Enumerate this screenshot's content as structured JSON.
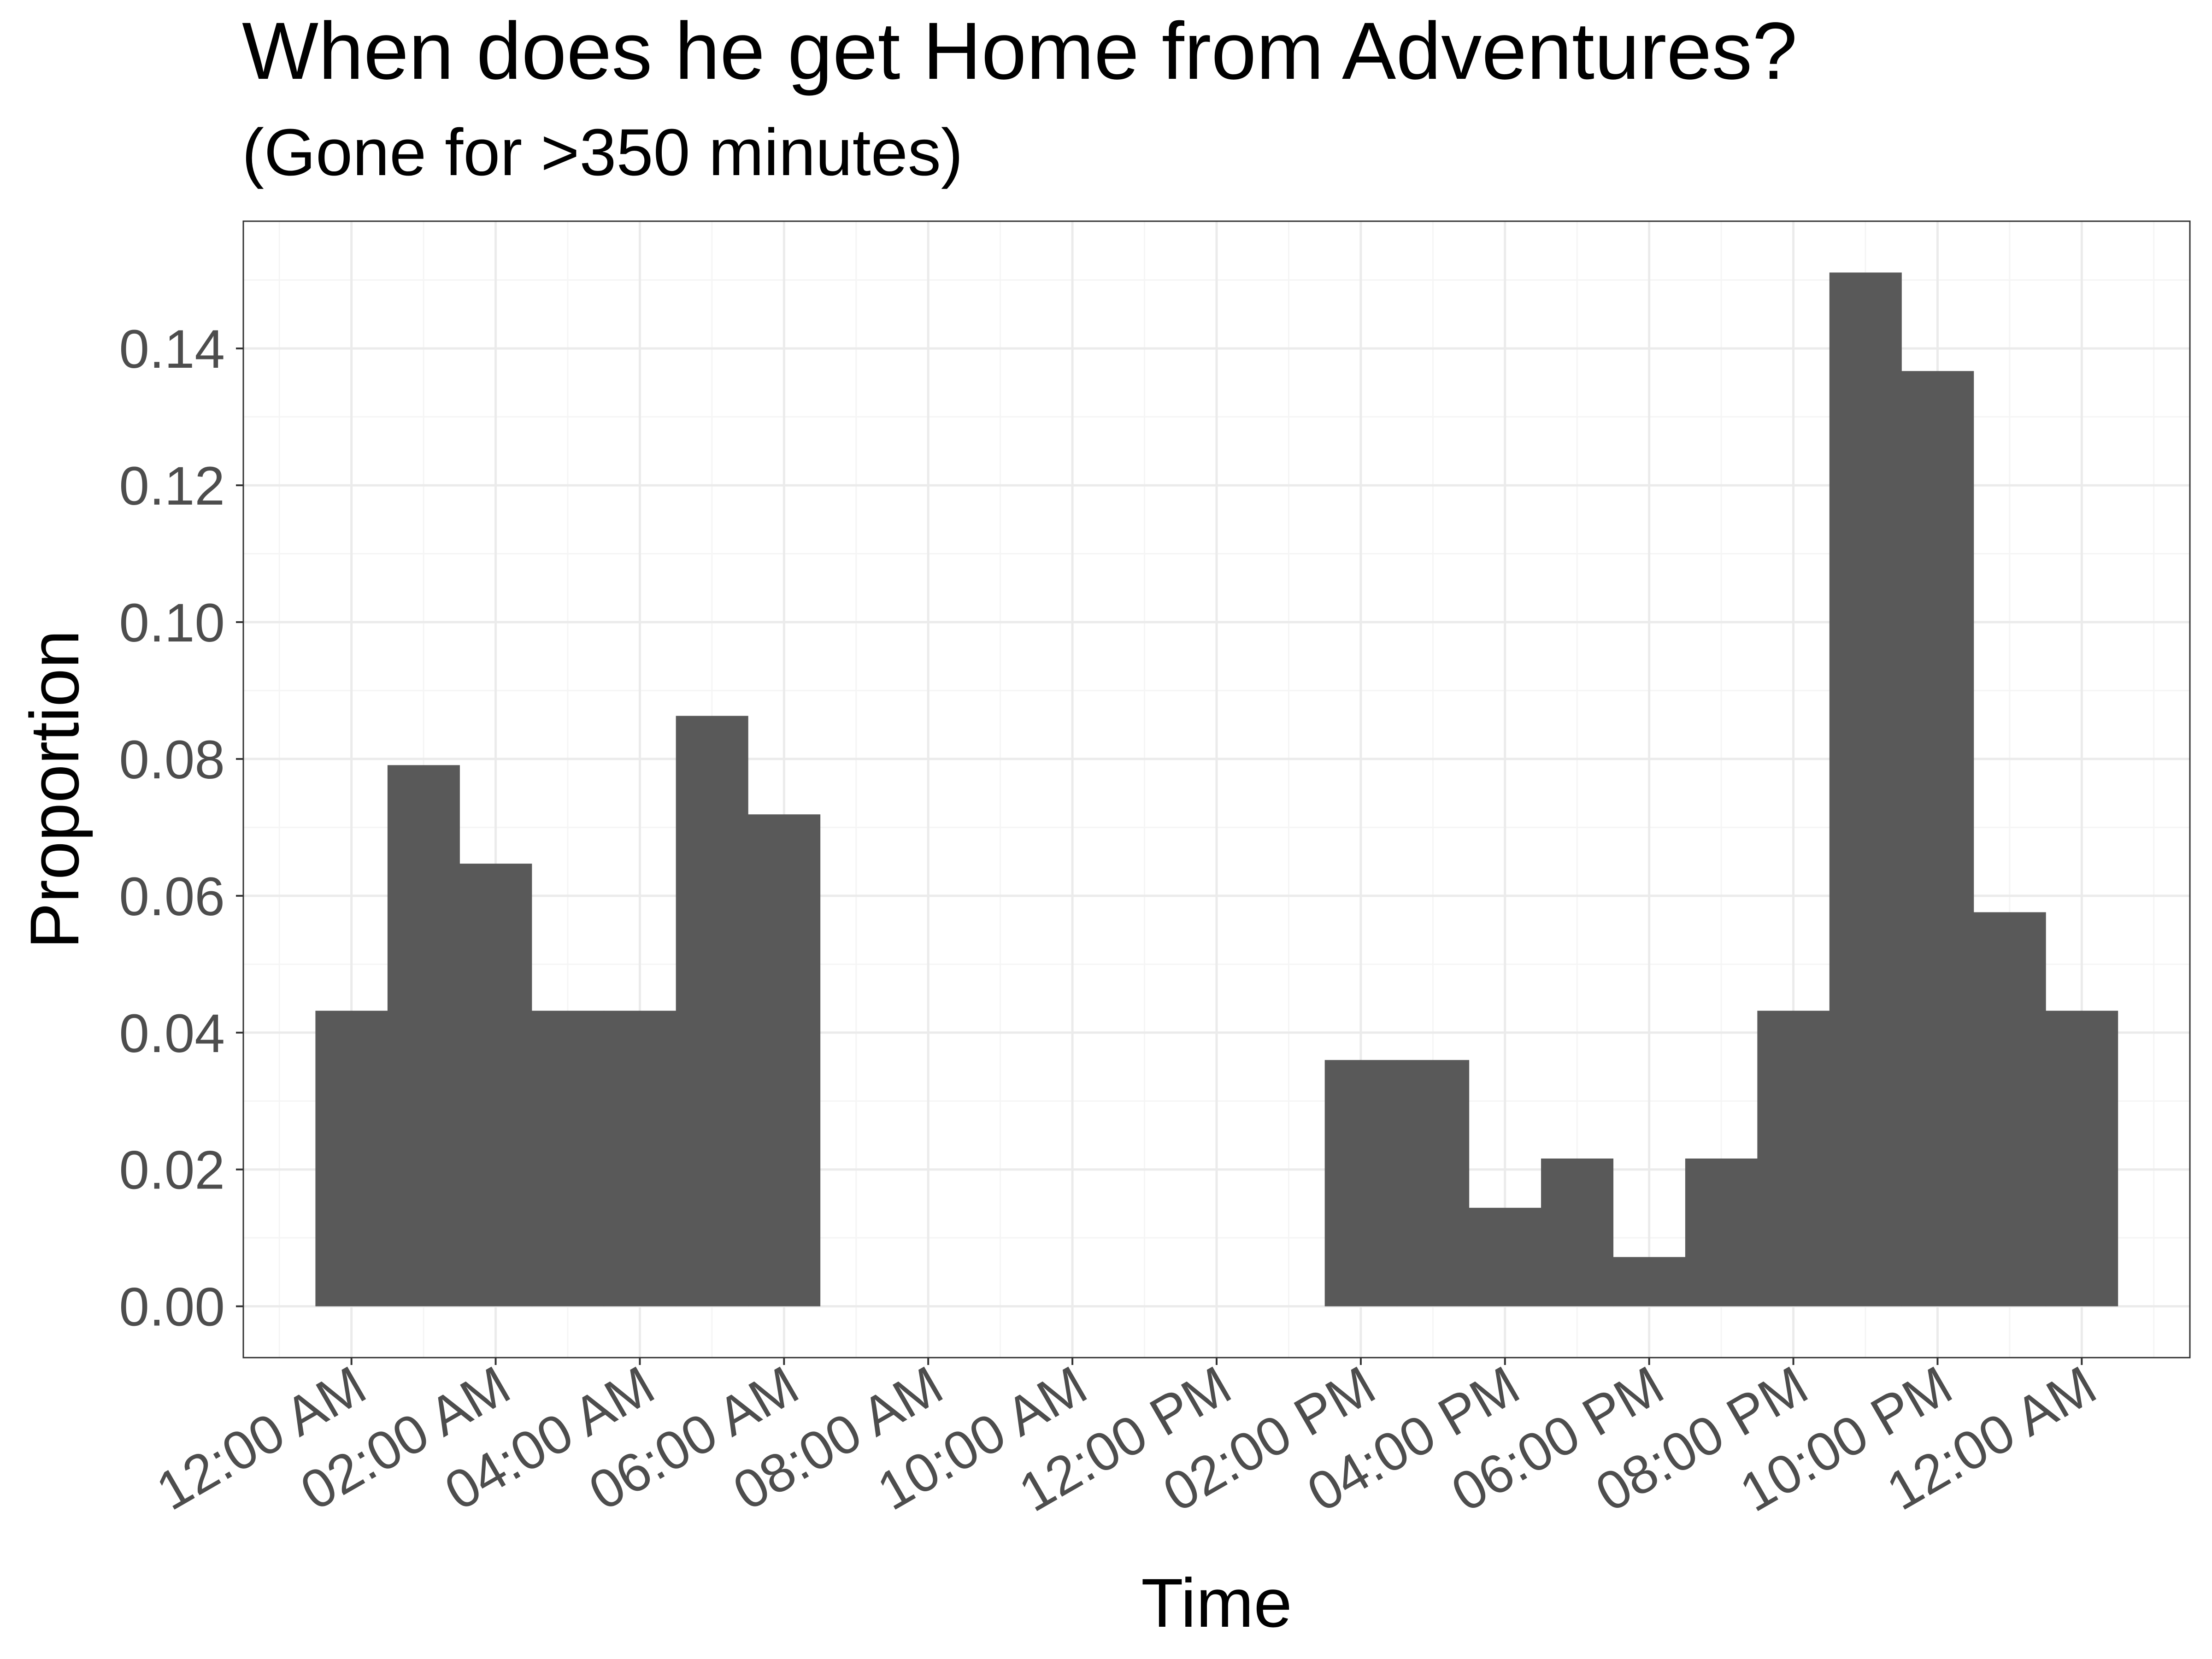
{
  "chart_data": {
    "type": "bar",
    "title": "When does he get Home from Adventures?",
    "subtitle": "(Gone for >350 minutes)",
    "xlabel": "Time",
    "ylabel": "Proportion",
    "x_unit": "hour of day",
    "bin_width_hours": 1,
    "bins": [
      {
        "center_hour": 0,
        "value": 0.0432
      },
      {
        "center_hour": 1,
        "value": 0.0791
      },
      {
        "center_hour": 2,
        "value": 0.0647
      },
      {
        "center_hour": 3,
        "value": 0.0432
      },
      {
        "center_hour": 4,
        "value": 0.0432
      },
      {
        "center_hour": 5,
        "value": 0.0863
      },
      {
        "center_hour": 6,
        "value": 0.0719
      },
      {
        "center_hour": 7,
        "value": 0
      },
      {
        "center_hour": 8,
        "value": 0
      },
      {
        "center_hour": 9,
        "value": 0
      },
      {
        "center_hour": 10,
        "value": 0
      },
      {
        "center_hour": 11,
        "value": 0
      },
      {
        "center_hour": 12,
        "value": 0
      },
      {
        "center_hour": 13,
        "value": 0
      },
      {
        "center_hour": 14,
        "value": 0.036
      },
      {
        "center_hour": 15,
        "value": 0.036
      },
      {
        "center_hour": 16,
        "value": 0.0144
      },
      {
        "center_hour": 17,
        "value": 0.0216
      },
      {
        "center_hour": 18,
        "value": 0.0072
      },
      {
        "center_hour": 19,
        "value": 0.0216
      },
      {
        "center_hour": 20,
        "value": 0.0432
      },
      {
        "center_hour": 21,
        "value": 0.1511
      },
      {
        "center_hour": 22,
        "value": 0.1367
      },
      {
        "center_hour": 23,
        "value": 0.0576
      },
      {
        "center_hour": 24,
        "value": 0.0432
      }
    ],
    "x_ticks": [
      {
        "hour": 0,
        "label": "12:00 AM"
      },
      {
        "hour": 2,
        "label": "02:00 AM"
      },
      {
        "hour": 4,
        "label": "04:00 AM"
      },
      {
        "hour": 6,
        "label": "06:00 AM"
      },
      {
        "hour": 8,
        "label": "08:00 AM"
      },
      {
        "hour": 10,
        "label": "10:00 AM"
      },
      {
        "hour": 12,
        "label": "12:00 PM"
      },
      {
        "hour": 14,
        "label": "02:00 PM"
      },
      {
        "hour": 16,
        "label": "04:00 PM"
      },
      {
        "hour": 18,
        "label": "06:00 PM"
      },
      {
        "hour": 20,
        "label": "08:00 PM"
      },
      {
        "hour": 22,
        "label": "10:00 PM"
      },
      {
        "hour": 24,
        "label": "12:00 AM"
      }
    ],
    "y_ticks": [
      {
        "value": 0,
        "label": "0.00"
      },
      {
        "value": 0.02,
        "label": "0.02"
      },
      {
        "value": 0.04,
        "label": "0.04"
      },
      {
        "value": 0.06,
        "label": "0.06"
      },
      {
        "value": 0.08,
        "label": "0.08"
      },
      {
        "value": 0.1,
        "label": "0.10"
      },
      {
        "value": 0.12,
        "label": "0.12"
      },
      {
        "value": 0.14,
        "label": "0.14"
      }
    ],
    "xlim": [
      -1.5,
      25.5
    ],
    "ylim": [
      -0.0075,
      0.1586
    ],
    "grid": true,
    "legend": "none",
    "colors": {
      "bar": "#595959",
      "grid_major": "#ebebeb",
      "grid_minor": "#f5f5f5",
      "panel_border": "#333333",
      "tick_text": "#4d4d4d"
    }
  }
}
